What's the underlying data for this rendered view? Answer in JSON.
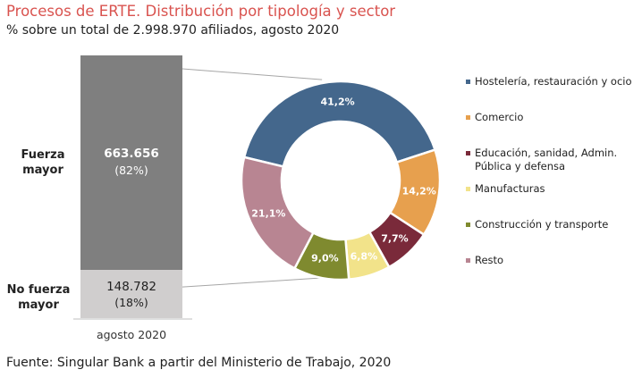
{
  "header": {
    "title": "Procesos de ERTE. Distribución por tipología y sector",
    "subtitle": "% sobre un total de 2.998.970 afiliados, agosto 2020"
  },
  "source": "Fuente: Singular Bank a partir del Ministerio de Trabajo, 2020",
  "colors": {
    "title": "#d9534f",
    "bar_fuerza_mayor": "#7f7f7f",
    "bar_no_fuerza_mayor": "#d0cece"
  },
  "chart_data": [
    {
      "type": "bar",
      "stacked": true,
      "categories": [
        "agosto 2020"
      ],
      "series": [
        {
          "name": "No fuerza mayor",
          "values": [
            148782
          ],
          "value_label": "148.782",
          "pct_label": "(18%)"
        },
        {
          "name": "Fuerza mayor",
          "values": [
            663656
          ],
          "value_label": "663.656",
          "pct_label": "(82%)"
        }
      ],
      "xlabel": "",
      "ylabel": "",
      "label_lines": {
        "fuerza_mayor": [
          "Fuerza",
          "mayor"
        ],
        "no_fuerza_mayor": [
          "No fuerza",
          "mayor"
        ]
      }
    },
    {
      "type": "pie",
      "donut": true,
      "legend_position": "right",
      "slices": [
        {
          "name": "Hostelería, restauración y ocio",
          "value": 41.2,
          "label": "41,2%",
          "color": "#44678c"
        },
        {
          "name": "Comercio",
          "value": 14.2,
          "label": "14,2%",
          "color": "#e7a04e"
        },
        {
          "name": "Educación, sanidad, Admin. Pública y defensa",
          "legend_lines": [
            "Educación, sanidad, Admin.",
            "Pública y defensa"
          ],
          "value": 7.7,
          "label": "7,7%",
          "color": "#7a2a3a"
        },
        {
          "name": "Manufacturas",
          "value": 6.8,
          "label": "6,8%",
          "color": "#f2e38a"
        },
        {
          "name": "Construcción y transporte",
          "value": 9.0,
          "label": "9,0%",
          "color": "#7f8a2f"
        },
        {
          "name": "Resto",
          "value": 21.1,
          "label": "21,1%",
          "color": "#b88592"
        }
      ]
    }
  ]
}
